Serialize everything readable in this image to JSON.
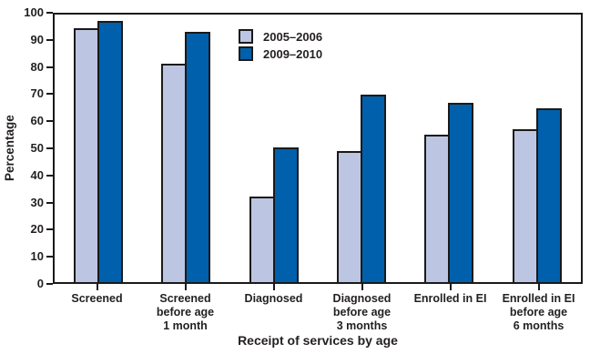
{
  "colors": {
    "background": "#ffffff",
    "axis": "#1a1a1a",
    "text": "#231f20",
    "series_2005_2006": "#bcc6e2",
    "series_2009_2010": "#0060ac"
  },
  "chart_data": {
    "type": "bar",
    "title": "",
    "xlabel": "Receipt of services by age",
    "ylabel": "Percentage",
    "ylim": [
      0,
      100
    ],
    "ytick_step": 10,
    "grid": false,
    "legend_position": "inside-top-center-left",
    "categories": [
      "Screened",
      "Screened before age 1 month",
      "Diagnosed",
      "Diagnosed before age 3 months",
      "Enrolled in EI",
      "Enrolled in EI before age 6 months"
    ],
    "category_label_lines": [
      [
        "Screened"
      ],
      [
        "Screened",
        "before age",
        "1 month"
      ],
      [
        "Diagnosed"
      ],
      [
        "Diagnosed",
        "before age",
        "3 months"
      ],
      [
        "Enrolled in EI"
      ],
      [
        "Enrolled in EI",
        "before age",
        "6 months"
      ]
    ],
    "series": [
      {
        "name": "2005–2006",
        "color": "#bcc6e2",
        "values": [
          95,
          81.5,
          32,
          49,
          55,
          57
        ]
      },
      {
        "name": "2009–2010",
        "color": "#0060ac",
        "values": [
          97.5,
          93.5,
          50.5,
          70,
          67,
          65
        ]
      }
    ]
  }
}
